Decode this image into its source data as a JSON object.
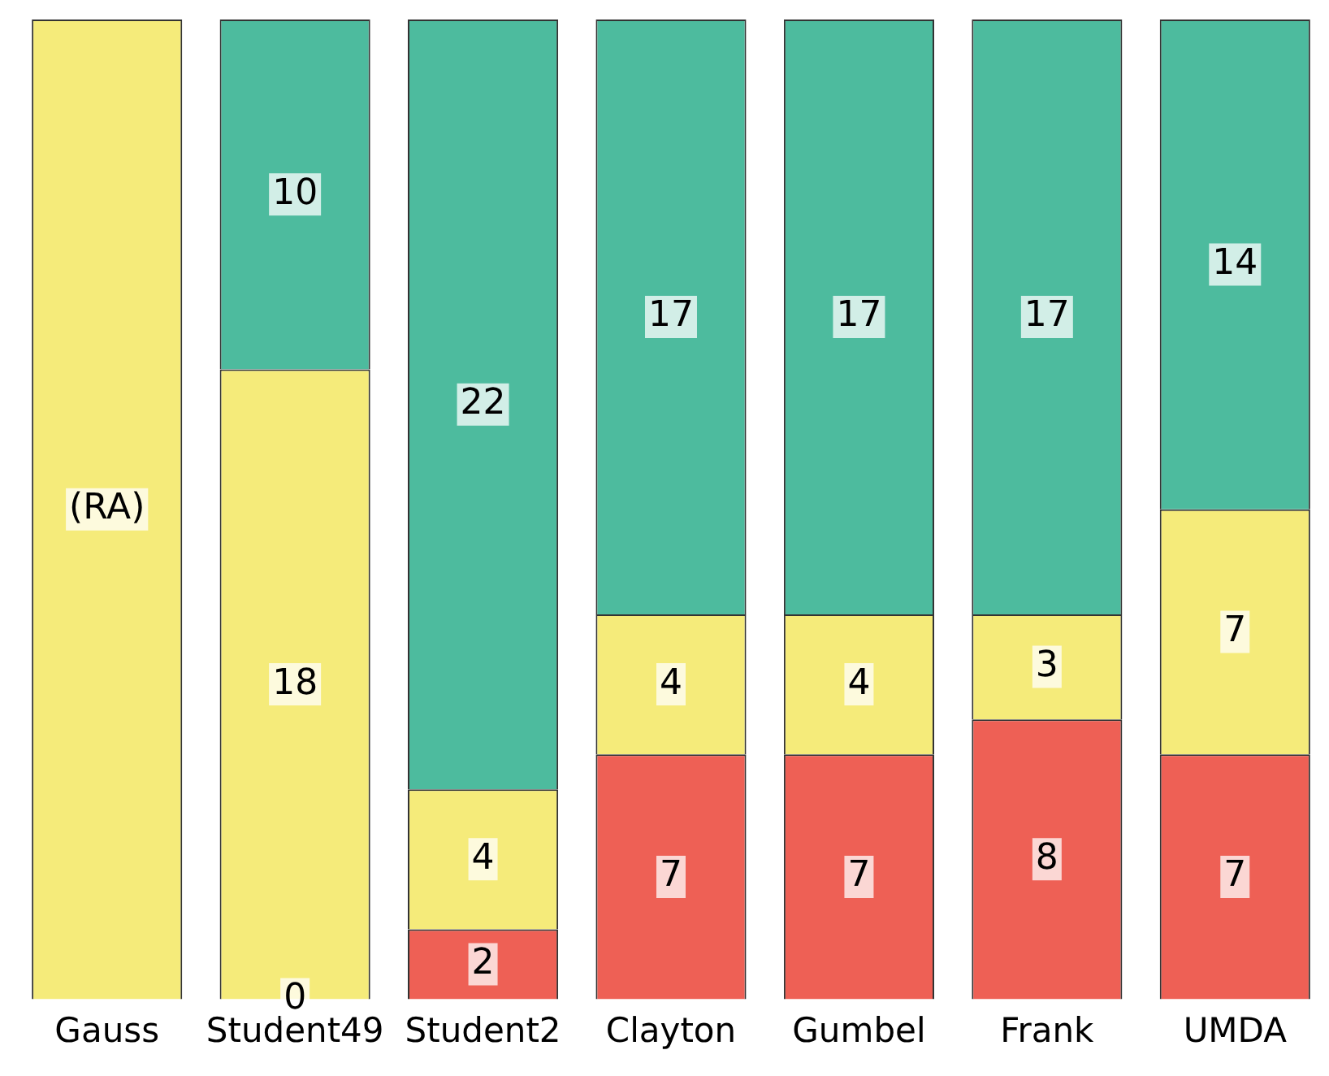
{
  "chart_data": {
    "type": "bar",
    "stacked": true,
    "categories": [
      "Gauss",
      "Student49",
      "Student2",
      "Clayton",
      "Gumbel",
      "Frank",
      "UMDA"
    ],
    "ylim": [
      0,
      28
    ],
    "tick_labels": "x",
    "grid": false,
    "legend": false,
    "annotations": [
      {
        "text": "0",
        "x": "Student49",
        "y": 0
      }
    ],
    "series": [
      {
        "color": "#ee6055",
        "values": [
          null,
          0,
          2,
          7,
          7,
          8,
          7
        ],
        "value_labels": [
          null,
          null,
          "2",
          "7",
          "7",
          "8",
          "7"
        ]
      },
      {
        "color": "#f5eb7a",
        "values": [
          28,
          18,
          4,
          4,
          4,
          3,
          7
        ],
        "value_labels": [
          "(RA)",
          "18",
          "4",
          "4",
          "4",
          "3",
          "7"
        ]
      },
      {
        "color": "#4dbb9e",
        "values": [
          null,
          10,
          22,
          17,
          17,
          17,
          14
        ],
        "value_labels": [
          null,
          "10",
          "22",
          "17",
          "17",
          "17",
          "14"
        ]
      }
    ]
  }
}
